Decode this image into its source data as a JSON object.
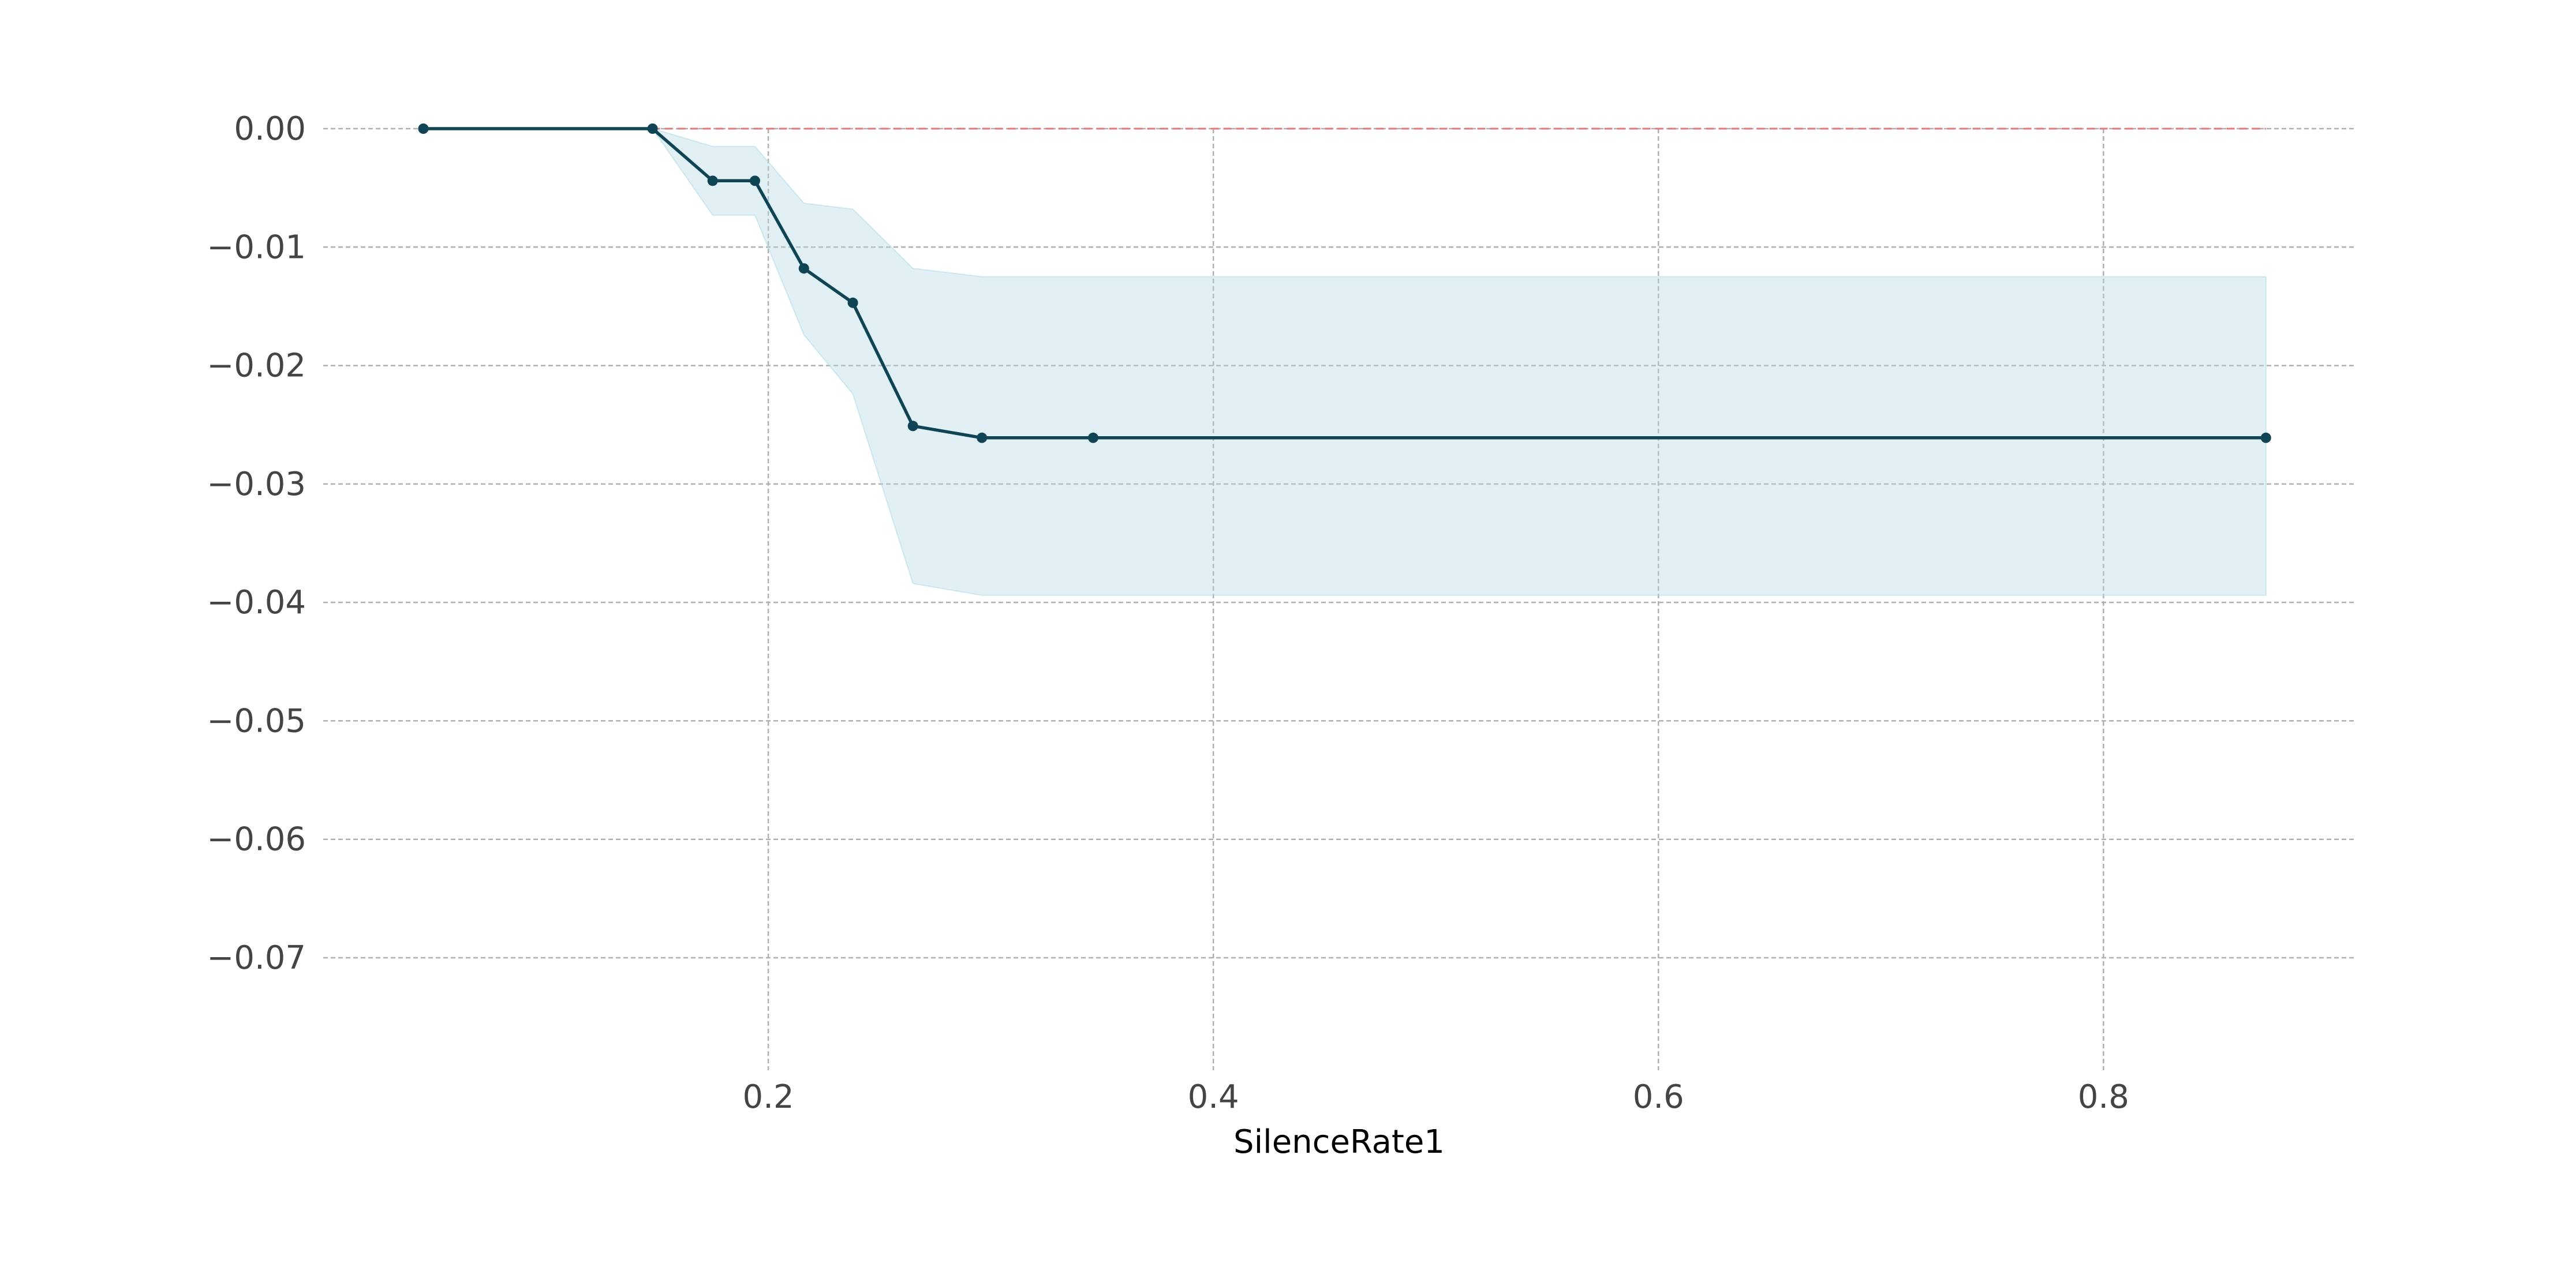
{
  "chart_data": {
    "type": "line",
    "title": "",
    "xlabel": "SilenceRate1",
    "ylabel": "",
    "xlim": [
      0.0,
      0.913
    ],
    "ylim": [
      -0.0795,
      0.0
    ],
    "x_ticks": [
      0.2,
      0.4,
      0.6,
      0.8
    ],
    "x_tick_labels": [
      "0.2",
      "0.4",
      "0.6",
      "0.8"
    ],
    "y_ticks": [
      0.0,
      -0.01,
      -0.02,
      -0.03,
      -0.04,
      -0.05,
      -0.06,
      -0.07
    ],
    "y_tick_labels": [
      "0.00",
      "−0.01",
      "−0.02",
      "−0.03",
      "−0.04",
      "−0.05",
      "−0.06",
      "−0.07"
    ],
    "grid": true,
    "legend": "none",
    "reference_line": {
      "y": 0.0,
      "x": [
        0.045,
        0.873
      ],
      "style": "dashed",
      "color": "#e07a7a"
    },
    "series": [
      {
        "x": [
          0.045,
          0.148,
          0.175,
          0.194,
          0.216,
          0.238,
          0.265,
          0.296,
          0.346,
          0.873
        ],
        "values": [
          0.0,
          0.0,
          -0.0044,
          -0.0044,
          -0.0118,
          -0.0147,
          -0.0251,
          -0.0261,
          -0.0261,
          -0.0261
        ],
        "lower": [
          0.0,
          0.0,
          -0.0073,
          -0.0073,
          -0.0174,
          -0.0224,
          -0.0384,
          -0.0394,
          -0.0394,
          -0.0394
        ],
        "upper": [
          0.0,
          0.0,
          -0.0015,
          -0.0015,
          -0.0063,
          -0.0068,
          -0.0118,
          -0.0125,
          -0.0125,
          -0.0125
        ],
        "color": "#0f4454",
        "band_color": "#add8e6"
      }
    ]
  }
}
